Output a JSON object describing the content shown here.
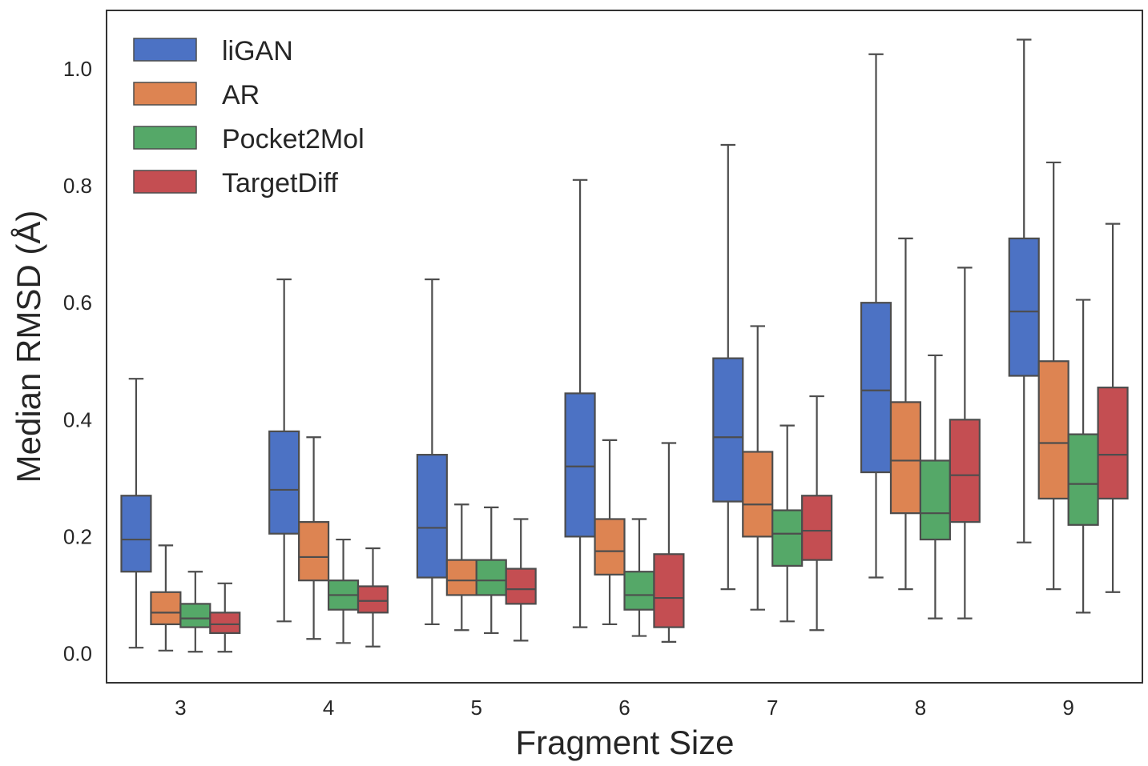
{
  "chart_data": {
    "type": "boxplot",
    "title": "",
    "xlabel": "Fragment Size",
    "ylabel": "Median RMSD (Å)",
    "ylim": [
      -0.05,
      1.1
    ],
    "yticks": [
      0.0,
      0.2,
      0.4,
      0.6,
      0.8,
      1.0
    ],
    "ytick_labels": [
      "0.0",
      "0.2",
      "0.4",
      "0.6",
      "0.8",
      "1.0"
    ],
    "categories": [
      "3",
      "4",
      "5",
      "6",
      "7",
      "8",
      "9"
    ],
    "legend_position": "top-left",
    "grid": false,
    "series": [
      {
        "name": "liGAN",
        "color": "#4c72c4",
        "boxes": [
          {
            "min": 0.01,
            "q1": 0.14,
            "median": 0.195,
            "q3": 0.27,
            "max": 0.47
          },
          {
            "min": 0.055,
            "q1": 0.205,
            "median": 0.28,
            "q3": 0.38,
            "max": 0.64
          },
          {
            "min": 0.05,
            "q1": 0.13,
            "median": 0.215,
            "q3": 0.34,
            "max": 0.64
          },
          {
            "min": 0.045,
            "q1": 0.2,
            "median": 0.32,
            "q3": 0.445,
            "max": 0.81
          },
          {
            "min": 0.11,
            "q1": 0.26,
            "median": 0.37,
            "q3": 0.505,
            "max": 0.87
          },
          {
            "min": 0.13,
            "q1": 0.31,
            "median": 0.45,
            "q3": 0.6,
            "max": 1.025
          },
          {
            "min": 0.19,
            "q1": 0.475,
            "median": 0.585,
            "q3": 0.71,
            "max": 1.05
          }
        ]
      },
      {
        "name": "AR",
        "color": "#dd8452",
        "boxes": [
          {
            "min": 0.005,
            "q1": 0.05,
            "median": 0.07,
            "q3": 0.105,
            "max": 0.185
          },
          {
            "min": 0.025,
            "q1": 0.125,
            "median": 0.165,
            "q3": 0.225,
            "max": 0.37
          },
          {
            "min": 0.04,
            "q1": 0.1,
            "median": 0.125,
            "q3": 0.16,
            "max": 0.255
          },
          {
            "min": 0.05,
            "q1": 0.135,
            "median": 0.175,
            "q3": 0.23,
            "max": 0.365
          },
          {
            "min": 0.075,
            "q1": 0.2,
            "median": 0.255,
            "q3": 0.345,
            "max": 0.56
          },
          {
            "min": 0.11,
            "q1": 0.24,
            "median": 0.33,
            "q3": 0.43,
            "max": 0.71
          },
          {
            "min": 0.11,
            "q1": 0.265,
            "median": 0.36,
            "q3": 0.5,
            "max": 0.84
          }
        ]
      },
      {
        "name": "Pocket2Mol",
        "color": "#55a868",
        "boxes": [
          {
            "min": 0.003,
            "q1": 0.045,
            "median": 0.06,
            "q3": 0.085,
            "max": 0.14
          },
          {
            "min": 0.018,
            "q1": 0.075,
            "median": 0.1,
            "q3": 0.125,
            "max": 0.195
          },
          {
            "min": 0.035,
            "q1": 0.1,
            "median": 0.125,
            "q3": 0.16,
            "max": 0.25
          },
          {
            "min": 0.03,
            "q1": 0.075,
            "median": 0.1,
            "q3": 0.14,
            "max": 0.23
          },
          {
            "min": 0.055,
            "q1": 0.15,
            "median": 0.205,
            "q3": 0.245,
            "max": 0.39
          },
          {
            "min": 0.06,
            "q1": 0.195,
            "median": 0.24,
            "q3": 0.33,
            "max": 0.51
          },
          {
            "min": 0.07,
            "q1": 0.22,
            "median": 0.29,
            "q3": 0.375,
            "max": 0.605
          }
        ]
      },
      {
        "name": "TargetDiff",
        "color": "#c44e52",
        "boxes": [
          {
            "min": 0.003,
            "q1": 0.035,
            "median": 0.05,
            "q3": 0.07,
            "max": 0.12
          },
          {
            "min": 0.012,
            "q1": 0.07,
            "median": 0.09,
            "q3": 0.115,
            "max": 0.18
          },
          {
            "min": 0.022,
            "q1": 0.085,
            "median": 0.11,
            "q3": 0.145,
            "max": 0.23
          },
          {
            "min": 0.02,
            "q1": 0.045,
            "median": 0.095,
            "q3": 0.17,
            "max": 0.36
          },
          {
            "min": 0.04,
            "q1": 0.16,
            "median": 0.21,
            "q3": 0.27,
            "max": 0.44
          },
          {
            "min": 0.06,
            "q1": 0.225,
            "median": 0.305,
            "q3": 0.4,
            "max": 0.66
          },
          {
            "min": 0.105,
            "q1": 0.265,
            "median": 0.34,
            "q3": 0.455,
            "max": 0.735
          }
        ]
      }
    ]
  }
}
